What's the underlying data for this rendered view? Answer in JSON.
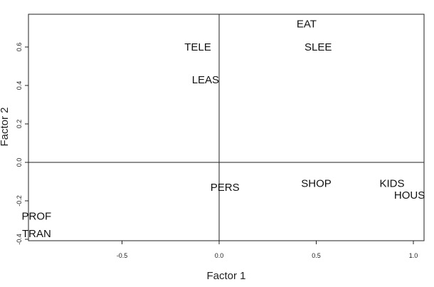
{
  "chart_data": {
    "type": "scatter",
    "title": "",
    "xlabel": "Factor 1",
    "ylabel": "Factor 2",
    "xticks": [
      -0.5,
      0.0,
      0.5,
      1.0
    ],
    "xtick_labels": [
      "-0.5",
      "0.0",
      "0.5",
      "1.0"
    ],
    "yticks": [
      -0.4,
      -0.2,
      0.0,
      0.2,
      0.4,
      0.6
    ],
    "ytick_labels": [
      "-0.4",
      "-0.2",
      "0.0",
      "0.2",
      "0.4",
      "0.6"
    ],
    "xlim": [
      -1.0,
      1.05
    ],
    "ylim": [
      -0.41,
      0.78
    ],
    "reference_lines": {
      "x": 0,
      "y": 0
    },
    "grid": false,
    "points": [
      {
        "label": "EAT",
        "x": 0.45,
        "y": 0.72
      },
      {
        "label": "TELE",
        "x": -0.11,
        "y": 0.6
      },
      {
        "label": "SLEE",
        "x": 0.51,
        "y": 0.6
      },
      {
        "label": "LEAS",
        "x": -0.07,
        "y": 0.43
      },
      {
        "label": "PERS",
        "x": 0.03,
        "y": -0.13
      },
      {
        "label": "SHOP",
        "x": 0.5,
        "y": -0.11
      },
      {
        "label": "KIDS",
        "x": 0.89,
        "y": -0.11
      },
      {
        "label": "HOUS",
        "x": 0.98,
        "y": -0.17
      },
      {
        "label": "PROF",
        "x": -0.94,
        "y": -0.28
      },
      {
        "label": "TRAN",
        "x": -0.94,
        "y": -0.37
      }
    ]
  }
}
